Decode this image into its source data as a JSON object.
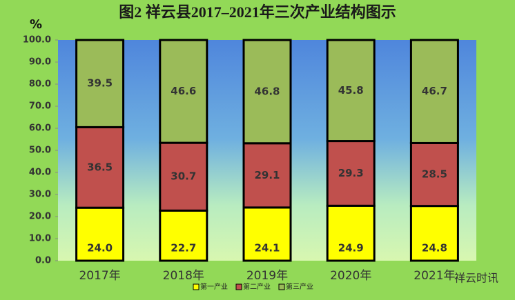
{
  "chart_data": {
    "type": "stacked_bar",
    "title": "图2  祥云县2017–2021年三次产业结构图示",
    "y_label": "%",
    "categories": [
      "2017年",
      "2018年",
      "2019年",
      "2020年",
      "2021年"
    ],
    "series": [
      {
        "name": "第一产业",
        "color": "#ffff00",
        "values": [
          24.0,
          22.7,
          24.1,
          24.9,
          24.8
        ],
        "value_labels": [
          "24.0",
          "22.7",
          "24.1",
          "24.9",
          "24.8"
        ]
      },
      {
        "name": "第二产业",
        "color": "#c0504d",
        "values": [
          36.5,
          30.7,
          29.1,
          29.3,
          28.5
        ],
        "value_labels": [
          "36.5",
          "30.7",
          "29.1",
          "29.3",
          "28.5"
        ]
      },
      {
        "name": "第三产业",
        "color": "#9bbb59",
        "values": [
          39.5,
          46.6,
          46.8,
          45.8,
          46.7
        ],
        "value_labels": [
          "39.5",
          "46.6",
          "46.8",
          "45.8",
          "46.7"
        ]
      }
    ],
    "ylim": [
      0,
      100
    ],
    "yticks": [
      {
        "value": 0,
        "label": "0.0"
      },
      {
        "value": 10,
        "label": "10.0"
      },
      {
        "value": 20,
        "label": "20.0"
      },
      {
        "value": 30,
        "label": "30.0"
      },
      {
        "value": 40,
        "label": "40.0"
      },
      {
        "value": 50,
        "label": "50.0"
      },
      {
        "value": 60,
        "label": "60.0"
      },
      {
        "value": 70,
        "label": "70.0"
      },
      {
        "value": 80,
        "label": "80.0"
      },
      {
        "value": 90,
        "label": "90.0"
      },
      {
        "value": 100,
        "label": "100.0"
      }
    ],
    "legend": "bottom",
    "watermark": "祥云时讯"
  }
}
